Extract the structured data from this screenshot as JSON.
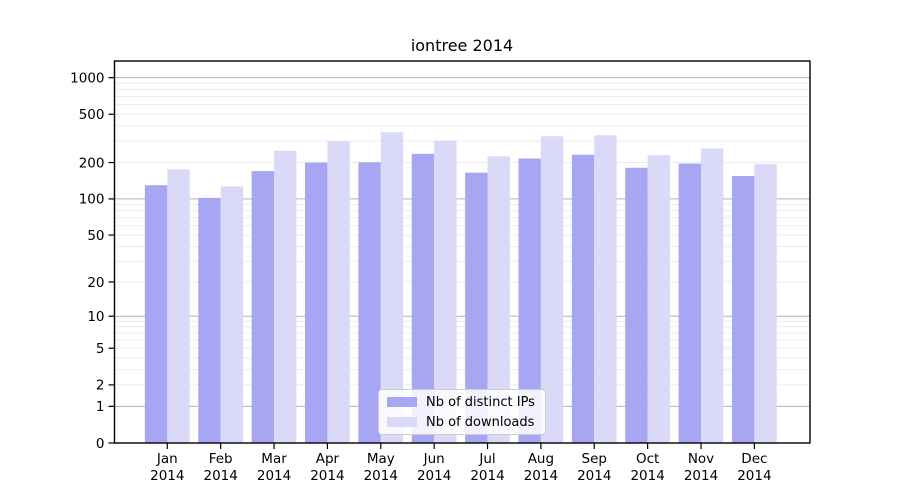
{
  "title": "iontree 2014",
  "chart_data": {
    "type": "bar",
    "title": "iontree 2014",
    "categories": [
      "Jan 2014",
      "Feb 2014",
      "Mar 2014",
      "Apr 2014",
      "May 2014",
      "Jun 2014",
      "Jul 2014",
      "Aug 2014",
      "Sep 2014",
      "Oct 2014",
      "Nov 2014",
      "Dec 2014"
    ],
    "months": [
      "Jan",
      "Feb",
      "Mar",
      "Apr",
      "May",
      "Jun",
      "Jul",
      "Aug",
      "Sep",
      "Oct",
      "Nov",
      "Dec"
    ],
    "year": "2014",
    "series": [
      {
        "name": "Nb of distinct IPs",
        "color": "#a6a6f3",
        "values": [
          130,
          102,
          170,
          200,
          201,
          236,
          165,
          216,
          232,
          181,
          196,
          155
        ]
      },
      {
        "name": "Nb of downloads",
        "color": "#dadaf8",
        "values": [
          176,
          127,
          250,
          300,
          355,
          303,
          225,
          330,
          336,
          230,
          261,
          194
        ]
      }
    ],
    "y_scale": "log1p",
    "y_ticks": [
      0,
      1,
      2,
      5,
      10,
      20,
      50,
      100,
      200,
      500,
      1000
    ],
    "ylim": [
      0,
      1370
    ],
    "grid": true,
    "legend_position": "lower center",
    "colors": {
      "major_grid": "#b3b3b3",
      "minor_grid": "#ececec",
      "spine": "#000000",
      "tick_text": "#000000"
    }
  }
}
